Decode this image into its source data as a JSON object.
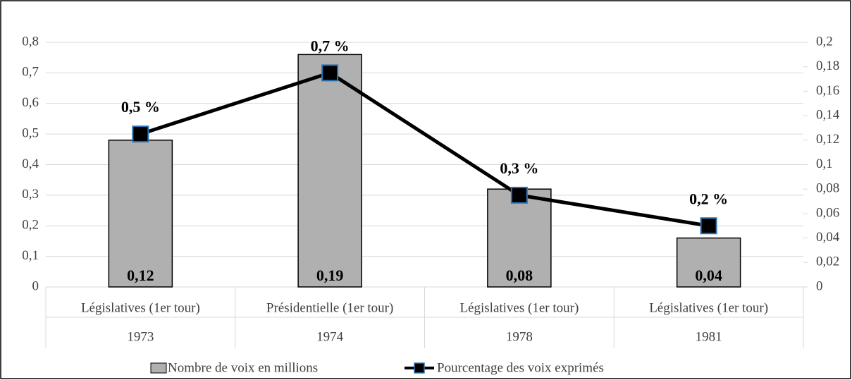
{
  "chart_data": {
    "type": "combo",
    "categories": [
      "1973",
      "1974",
      "1978",
      "1981"
    ],
    "category_labels": [
      "Législatives (1er tour)",
      "Présidentielle (1er tour)",
      "Législatives (1er tour)",
      "Législatives (1er tour)"
    ],
    "series": [
      {
        "name": "Nombre de voix en millions",
        "type": "bar",
        "axis": "y2",
        "color": "#b0b0b0",
        "values": [
          0.12,
          0.19,
          0.08,
          0.04
        ],
        "value_labels": [
          "0,12",
          "0,19",
          "0,08",
          "0,04"
        ]
      },
      {
        "name": "Pourcentage des voix exprimés",
        "type": "line",
        "color": "#000000",
        "marker_edge": "#2e75b6",
        "values": [
          0.5,
          0.7,
          0.3,
          0.2
        ],
        "value_labels": [
          "0,5 %",
          "0,7 %",
          "0,3 %",
          "0,2 %"
        ]
      }
    ],
    "ylim": [
      0,
      0.8
    ],
    "yticks": [
      0,
      {
        "value": 0.1,
        "label": "0,1"
      },
      {
        "value": 0.2,
        "label": "0,2"
      },
      {
        "value": 0.3,
        "label": "0,3"
      },
      {
        "value": 0.4,
        "label": "0,4"
      },
      {
        "value": 0.5,
        "label": "0,5"
      },
      {
        "value": 0.6,
        "label": "0,6"
      },
      {
        "value": 0.7,
        "label": "0,7"
      },
      {
        "value": 0.8,
        "label": "0,8"
      }
    ],
    "y2lim": [
      0,
      0.2
    ],
    "y2ticks": [
      0,
      {
        "value": 0.02,
        "label": "0,02"
      },
      {
        "value": 0.04,
        "label": "0,04"
      },
      {
        "value": 0.06,
        "label": "0,06"
      },
      {
        "value": 0.08,
        "label": "0,08"
      },
      {
        "value": 0.1,
        "label": "0,1"
      },
      {
        "value": 0.12,
        "label": "0,12"
      },
      {
        "value": 0.14,
        "label": "0,14"
      },
      {
        "value": 0.16,
        "label": "0,16"
      },
      {
        "value": 0.18,
        "label": "0,18"
      },
      {
        "value": 0.2,
        "label": "0,2"
      }
    ],
    "grid": true,
    "legend": "bottom"
  }
}
